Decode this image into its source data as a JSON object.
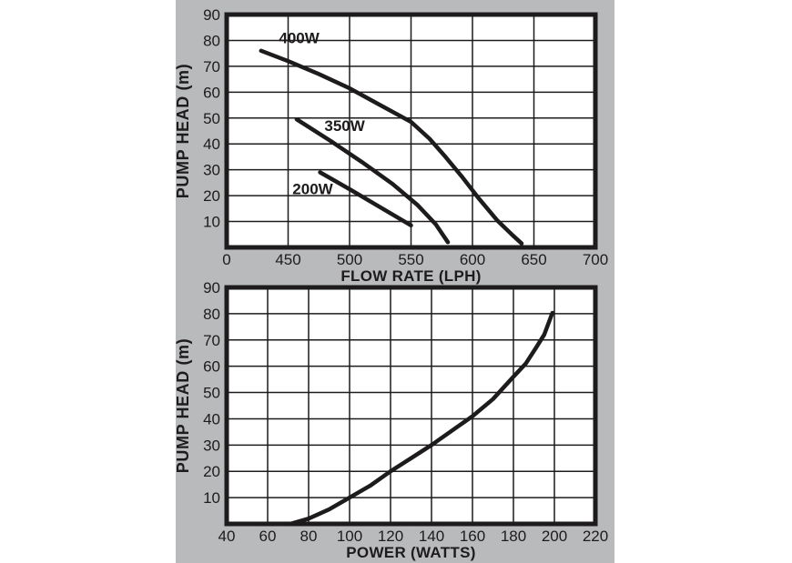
{
  "page": {
    "background": "#ffffff",
    "panel_background": "#b9babc",
    "ink": "#1d1b1c",
    "plot_background": "#ffffff"
  },
  "chart_data": [
    {
      "type": "line",
      "name": "head-vs-flow",
      "title": "",
      "xlabel": "FLOW RATE (LPH)",
      "ylabel": "PUMP HEAD (m)",
      "x_ticks": [
        "0",
        "450",
        "500",
        "550",
        "600",
        "650",
        "700"
      ],
      "y_ticks": [
        "10",
        "20",
        "30",
        "40",
        "50",
        "60",
        "70",
        "80",
        "90"
      ],
      "cols": 6,
      "rows": 9,
      "x_scale": {
        "x0": 450,
        "per_cell": 50,
        "t0": 1
      },
      "y_scale": {
        "y0": 0,
        "per_cell": 10
      },
      "ylim": [
        0,
        90
      ],
      "grid": true,
      "x_axis_note": "broken axis: origin labeled 0, then 450-700 LPH at 50 LPH per gridline",
      "series": [
        {
          "name": "400W",
          "label_at": {
            "x": 459,
            "y": 79
          },
          "points": [
            [
              428,
              76
            ],
            [
              450,
              72
            ],
            [
              475,
              67
            ],
            [
              500,
              61.5
            ],
            [
              525,
              55
            ],
            [
              550,
              48.5
            ],
            [
              565,
              42
            ],
            [
              578,
              35
            ],
            [
              592,
              27
            ],
            [
              605,
              19
            ],
            [
              620,
              10.5
            ],
            [
              632,
              5
            ],
            [
              640,
              1.5
            ]
          ]
        },
        {
          "name": "350W",
          "label_at": {
            "x": 496,
            "y": 45
          },
          "points": [
            [
              457,
              49.5
            ],
            [
              485,
              41
            ],
            [
              510,
              33
            ],
            [
              535,
              24.5
            ],
            [
              555,
              16.5
            ],
            [
              570,
              9
            ],
            [
              580,
              2
            ]
          ]
        },
        {
          "name": "200W",
          "label_at": {
            "x": 470,
            "y": 20.5
          },
          "points": [
            [
              476,
              29
            ],
            [
              500,
              22.5
            ],
            [
              525,
              15.5
            ],
            [
              550,
              8.5
            ]
          ]
        }
      ]
    },
    {
      "type": "line",
      "name": "head-vs-power",
      "title": "",
      "xlabel": "POWER (WATTS)",
      "ylabel": "PUMP HEAD (m)",
      "x_ticks": [
        "40",
        "60",
        "80",
        "100",
        "120",
        "140",
        "160",
        "180",
        "200",
        "220"
      ],
      "y_ticks": [
        "10",
        "20",
        "30",
        "40",
        "50",
        "60",
        "70",
        "80",
        "90"
      ],
      "cols": 9,
      "rows": 9,
      "x_scale": {
        "x0": 40,
        "per_cell": 20,
        "t0": 0
      },
      "y_scale": {
        "y0": 0,
        "per_cell": 10
      },
      "ylim": [
        0,
        90
      ],
      "xlim": [
        40,
        220
      ],
      "grid": true,
      "series": [
        {
          "name": "",
          "points": [
            [
              71,
              0
            ],
            [
              80,
              2
            ],
            [
              90,
              5.5
            ],
            [
              100,
              10
            ],
            [
              110,
              14.5
            ],
            [
              120,
              20
            ],
            [
              130,
              25
            ],
            [
              140,
              30
            ],
            [
              150,
              35.5
            ],
            [
              160,
              41
            ],
            [
              170,
              47.5
            ],
            [
              180,
              56
            ],
            [
              186,
              61
            ],
            [
              191,
              67
            ],
            [
              195,
              72
            ],
            [
              199,
              80.3
            ]
          ]
        }
      ]
    }
  ]
}
